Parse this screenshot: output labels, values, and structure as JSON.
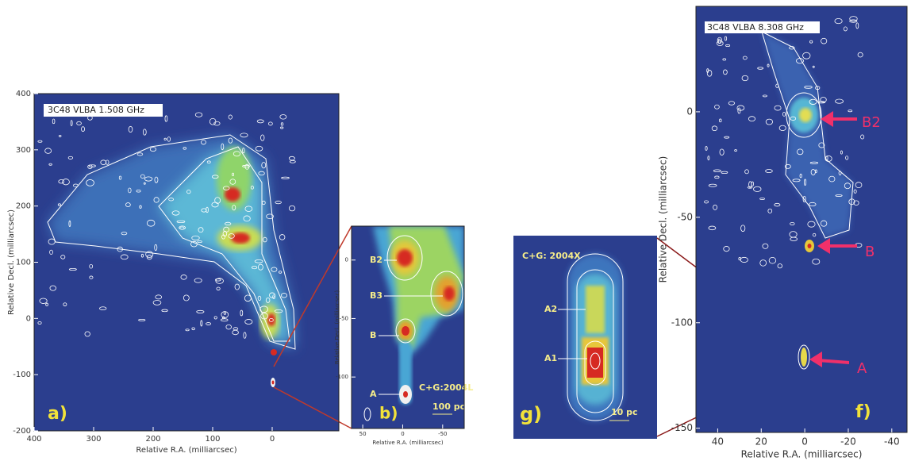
{
  "chart_data": [
    {
      "type": "image",
      "title": "3C48 VLBA 1.508 GHz",
      "panel_label": "a)",
      "x_label": "Relative R.A. (milliarcsec)",
      "y_label": "Relative Decl. (milliarcsec)",
      "xlim": [
        400,
        -112
      ],
      "ylim": [
        -200,
        400
      ],
      "xticks": [
        400,
        300,
        200,
        100,
        0
      ],
      "yticks": [
        400,
        300,
        200,
        100,
        0,
        -100,
        -200
      ],
      "annotations": []
    },
    {
      "type": "image",
      "panel_label": "b)",
      "x_label": "Relative R.A. (milliarcsec)",
      "y_label": "Relative Decl. (milliarcsec)",
      "xlim": [
        64,
        -77
      ],
      "ylim": [
        -144,
        29
      ],
      "xticks": [
        50,
        0,
        -50
      ],
      "yticks": [
        0,
        -50,
        -100
      ],
      "annotations": [
        "B2",
        "B3",
        "B",
        "A",
        "C+G:2004L",
        "100 pc"
      ]
    },
    {
      "type": "image",
      "panel_label": "g)",
      "annotations": [
        "C+G: 2004X",
        "A2",
        "A1",
        "10 pc"
      ]
    },
    {
      "type": "image",
      "title": "3C48 VLBA 8.308 GHz",
      "panel_label": "f)",
      "x_label": "Relative R.A. (milliarcsec)",
      "y_label": "Relative Decl. (milliarcsec)",
      "xlim": [
        50,
        -47
      ],
      "ylim": [
        -152,
        50
      ],
      "xticks": [
        40,
        20,
        0,
        -20,
        -40
      ],
      "yticks": [
        0,
        -50,
        -100,
        -150
      ],
      "annotations": [
        "B2",
        "B",
        "A"
      ]
    }
  ]
}
